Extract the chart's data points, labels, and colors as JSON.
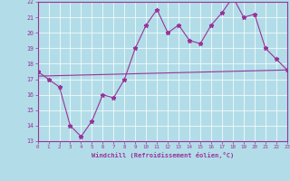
{
  "xlabel": "Windchill (Refroidissement éolien,°C)",
  "xlim": [
    0,
    23
  ],
  "ylim": [
    13,
    22
  ],
  "xticks": [
    0,
    1,
    2,
    3,
    4,
    5,
    6,
    7,
    8,
    9,
    10,
    11,
    12,
    13,
    14,
    15,
    16,
    17,
    18,
    19,
    20,
    21,
    22,
    23
  ],
  "yticks": [
    13,
    14,
    15,
    16,
    17,
    18,
    19,
    20,
    21,
    22
  ],
  "bg_color": "#b2dde8",
  "grid_color": "#ffffff",
  "line_color": "#993399",
  "line1_x": [
    0,
    1,
    2,
    3,
    4,
    5,
    6,
    7,
    8,
    9,
    10,
    11,
    12,
    13,
    14,
    15,
    16,
    17,
    18,
    19,
    20,
    21,
    22,
    23
  ],
  "line1_y": [
    17.5,
    17.0,
    16.5,
    14.0,
    13.3,
    14.3,
    16.0,
    15.8,
    17.0,
    19.0,
    20.5,
    21.5,
    20.0,
    20.5,
    19.5,
    19.3,
    20.5,
    21.3,
    22.3,
    21.0,
    21.2,
    19.0,
    18.3,
    17.6
  ],
  "line2_x": [
    0,
    23
  ],
  "line2_y": [
    17.2,
    17.6
  ]
}
